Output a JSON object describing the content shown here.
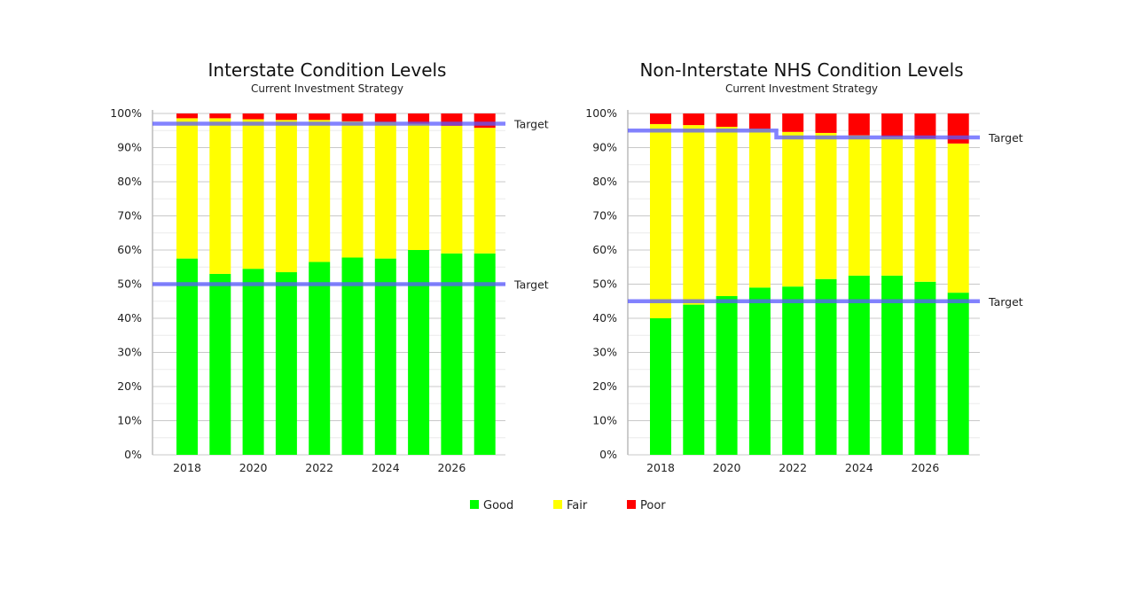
{
  "legend": [
    {
      "label": "Good",
      "color": "#00ff00"
    },
    {
      "label": "Fair",
      "color": "#ffff00"
    },
    {
      "label": "Poor",
      "color": "#ff0000"
    }
  ],
  "target_color": "#5a5aff",
  "chart_data": [
    {
      "type": "bar",
      "stacked": true,
      "title": "Interstate Condition Levels",
      "subtitle": "Current Investment Strategy",
      "categories": [
        2018,
        2019,
        2020,
        2021,
        2022,
        2023,
        2024,
        2025,
        2026,
        2027
      ],
      "x_tick_labels": [
        "2018",
        "2020",
        "2022",
        "2024",
        "2026"
      ],
      "y_tick_labels": [
        "0%",
        "10%",
        "20%",
        "30%",
        "40%",
        "50%",
        "60%",
        "70%",
        "80%",
        "90%",
        "100%"
      ],
      "ylim": [
        0,
        100
      ],
      "grid": true,
      "series": [
        {
          "name": "Good",
          "values": [
            57.5,
            53,
            54.5,
            53.5,
            56.5,
            57.8,
            57.5,
            60,
            59,
            59
          ]
        },
        {
          "name": "Fair",
          "values": [
            41.1,
            45.6,
            43.8,
            44.6,
            41.6,
            39.9,
            40,
            37,
            37.4,
            36.8
          ]
        },
        {
          "name": "Poor",
          "values": [
            1.4,
            1.4,
            1.7,
            1.9,
            1.9,
            2.3,
            2.5,
            3.0,
            3.6,
            4.2
          ]
        }
      ],
      "targets": [
        {
          "label": "Target",
          "values": [
            97,
            97,
            97,
            97,
            97,
            97,
            97,
            97,
            97,
            97
          ]
        },
        {
          "label": "Target",
          "values": [
            50,
            50,
            50,
            50,
            50,
            50,
            50,
            50,
            50,
            50
          ]
        }
      ]
    },
    {
      "type": "bar",
      "stacked": true,
      "title": "Non-Interstate NHS Condition Levels",
      "subtitle": "Current Investment Strategy",
      "categories": [
        2018,
        2019,
        2020,
        2021,
        2022,
        2023,
        2024,
        2025,
        2026,
        2027
      ],
      "x_tick_labels": [
        "2018",
        "2020",
        "2022",
        "2024",
        "2026"
      ],
      "y_tick_labels": [
        "0%",
        "10%",
        "20%",
        "30%",
        "40%",
        "50%",
        "60%",
        "70%",
        "80%",
        "90%",
        "100%"
      ],
      "ylim": [
        0,
        100
      ],
      "grid": true,
      "series": [
        {
          "name": "Good",
          "values": [
            40,
            44,
            46.5,
            49,
            49.3,
            51.5,
            52.5,
            52.5,
            50.7,
            47.5
          ]
        },
        {
          "name": "Fair",
          "values": [
            56.9,
            52.6,
            49.6,
            46.5,
            45.3,
            42.8,
            41.1,
            40.7,
            42,
            43.7
          ]
        },
        {
          "name": "Poor",
          "values": [
            3.1,
            3.4,
            3.9,
            4.5,
            5.4,
            5.7,
            6.4,
            6.8,
            7.3,
            8.8
          ]
        }
      ],
      "targets": [
        {
          "label": "Target",
          "values": [
            95,
            95,
            95,
            95,
            93,
            93,
            93,
            93,
            93,
            93
          ]
        },
        {
          "label": "Target",
          "values": [
            45,
            45,
            45,
            45,
            45,
            45,
            45,
            45,
            45,
            45
          ]
        }
      ]
    }
  ]
}
